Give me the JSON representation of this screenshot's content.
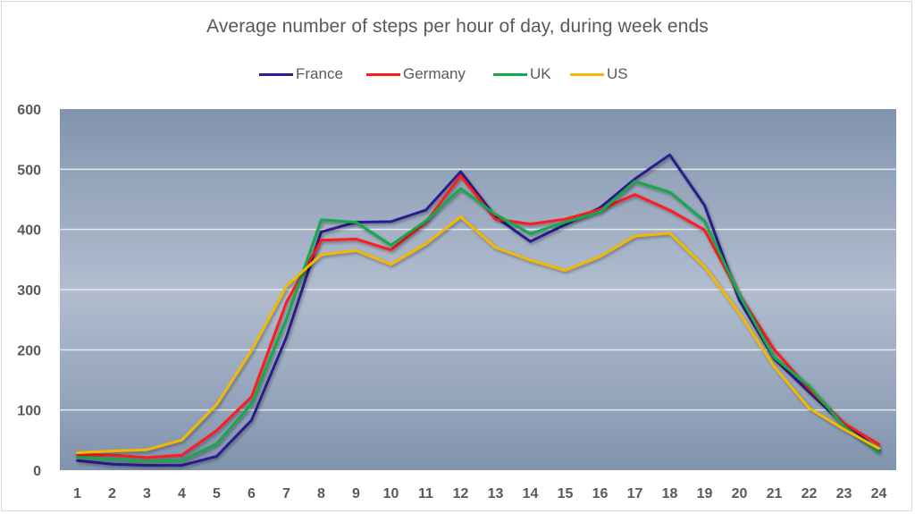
{
  "chart_data": {
    "type": "line",
    "title": "Average number of steps per hour of day, during week ends",
    "xlabel": "",
    "ylabel": "",
    "categories": [
      "1",
      "2",
      "3",
      "4",
      "5",
      "6",
      "7",
      "8",
      "9",
      "10",
      "11",
      "12",
      "13",
      "14",
      "15",
      "16",
      "17",
      "18",
      "19",
      "20",
      "21",
      "22",
      "23",
      "24"
    ],
    "ylim": [
      0,
      600
    ],
    "yticks": [
      "0",
      "100",
      "200",
      "300",
      "400",
      "500",
      "600"
    ],
    "grid": true,
    "legend_position": "top-center",
    "series": [
      {
        "name": "France",
        "color": "#2b1f8c",
        "values": [
          16,
          10,
          8,
          8,
          23,
          83,
          221,
          396,
          412,
          413,
          432,
          496,
          421,
          380,
          408,
          436,
          484,
          524,
          440,
          282,
          185,
          130,
          76,
          34
        ]
      },
      {
        "name": "Germany",
        "color": "#ff1a1a",
        "values": [
          26,
          25,
          21,
          25,
          66,
          122,
          279,
          382,
          384,
          366,
          412,
          489,
          417,
          409,
          417,
          433,
          458,
          432,
          399,
          291,
          200,
          135,
          78,
          43
        ]
      },
      {
        "name": "UK",
        "color": "#18a84b",
        "values": [
          22,
          18,
          15,
          16,
          44,
          110,
          251,
          416,
          412,
          374,
          414,
          468,
          425,
          393,
          412,
          429,
          480,
          462,
          414,
          291,
          187,
          140,
          73,
          30
        ]
      },
      {
        "name": "US",
        "color": "#f4b800",
        "values": [
          29,
          32,
          34,
          50,
          109,
          199,
          306,
          358,
          365,
          342,
          376,
          421,
          370,
          349,
          332,
          355,
          389,
          394,
          338,
          261,
          172,
          103,
          68,
          36
        ]
      }
    ]
  },
  "colors": {
    "plot_gradient_edge": "#8194ae",
    "plot_gradient_mid": "#b2bdcf",
    "gridline": "#e6e9ee",
    "text": "#595959"
  }
}
